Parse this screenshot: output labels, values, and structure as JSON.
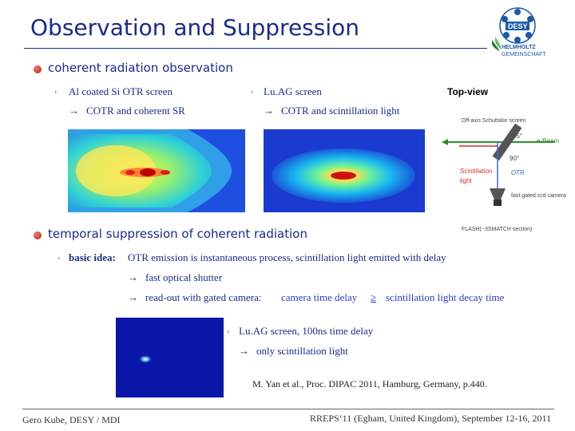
{
  "slide": {
    "title": "Observation and Suppression",
    "section1": {
      "heading": "coherent radiation observation",
      "left_item": "Al coated Si OTR screen",
      "left_arrow": "→",
      "left_result": "COTR and coherent SR",
      "right_item": "Lu.AG screen",
      "right_arrow": "→",
      "right_result": "COTR and scintillation light"
    },
    "diagram": {
      "top_view": "Top-view",
      "off_axis": "Off-axis Schuttalor screen",
      "angle45": "45°",
      "ebeam": "e-Beam",
      "angle90": "90°",
      "scint": "Scintillation",
      "light": "light",
      "otr": "OTR",
      "camera": "fast gated ccd camera",
      "flash": "FLASH(~3SMATCH section)"
    },
    "section2": {
      "heading": "temporal suppression of coherent radiation",
      "basic_label": "basic idea:",
      "basic_text": "OTR emission is instantaneous process, scintillation light emitted with delay",
      "arrow": "→",
      "shutter": "fast optical shutter",
      "readout": "read-out with gated camera:",
      "delay_lhs": "camera time delay",
      "geq": "≥",
      "delay_rhs": "scintillation light decay time",
      "luag_delay": "Lu.AG screen,  100ns time delay",
      "only_scint": "only scintillation light",
      "reference": "M. Yan et al., Proc. DIPAC 2011, Hamburg, Germany, p.440."
    },
    "footer": {
      "left": "Gero Kube, DESY / MDI",
      "right": "RREPS‘11 (Egham, United Kingdom), September 12-16, 2011"
    },
    "logo": {
      "desy": "DESY",
      "helmholtz": "HELMHOLTZ",
      "gemeinschaft": "GEMEINSCHAFT"
    }
  }
}
